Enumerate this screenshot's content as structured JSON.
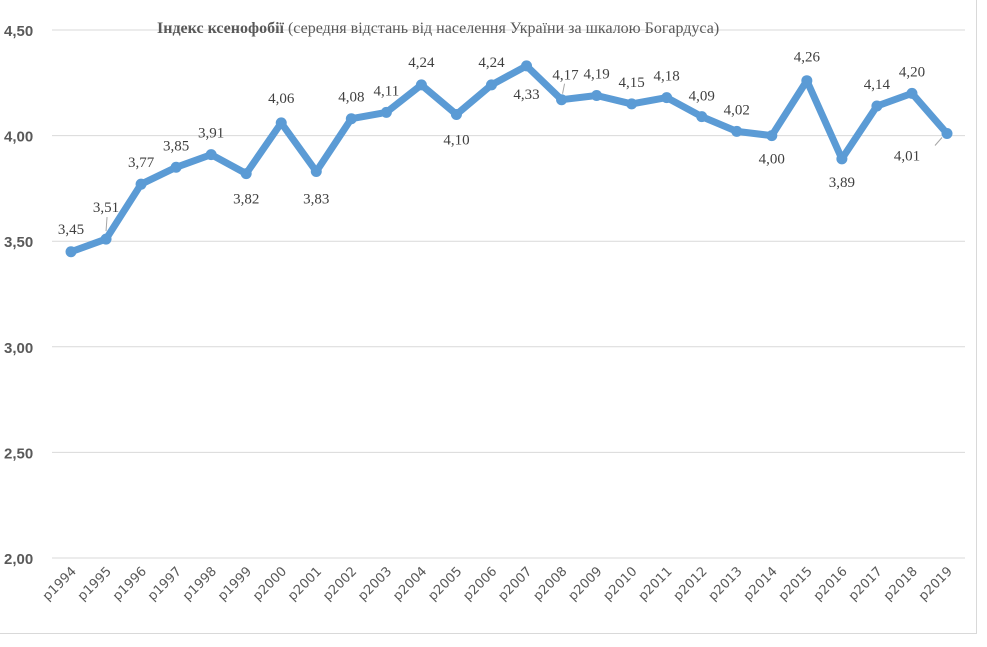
{
  "chart_data": {
    "type": "line",
    "title_bold": "Індекс ксенофобії",
    "title_rest": " (середня відстань від  населення України за шкалою Богардуса)",
    "categories": [
      "р1994",
      "р1995",
      "р1996",
      "р1997",
      "р1998",
      "р1999",
      "р2000",
      "р2001",
      "р2002",
      "р2003",
      "р2004",
      "р2005",
      "р2006",
      "р2007",
      "р2008",
      "р2009",
      "р2010",
      "р2011",
      "р2012",
      "р2013",
      "р2014",
      "р2015",
      "р2016",
      "р2017",
      "р2018",
      "р2019"
    ],
    "values": [
      3.45,
      3.51,
      3.77,
      3.85,
      3.91,
      3.82,
      4.06,
      3.83,
      4.08,
      4.11,
      4.24,
      4.1,
      4.24,
      4.33,
      4.17,
      4.19,
      4.15,
      4.18,
      4.09,
      4.02,
      4.0,
      4.26,
      3.89,
      4.14,
      4.2,
      4.01
    ],
    "data_labels": [
      "3,45",
      "3,51",
      "3,77",
      "3,85",
      "3,91",
      "3,82",
      "4,06",
      "3,83",
      "4,08",
      "4,11",
      "4,24",
      "4,10",
      "4,24",
      "4,33",
      "4,17",
      "4,19",
      "4,15",
      "4,18",
      "4,09",
      "4,02",
      "4,00",
      "4,26",
      "3,89",
      "4,14",
      "4,20",
      "4,01"
    ],
    "yticks": [
      "2,00",
      "2,50",
      "3,00",
      "3,50",
      "4,00",
      "4,50"
    ],
    "ylim": [
      2.0,
      4.5
    ],
    "grid": true,
    "legend": "none",
    "line_color": "#5B9BD5",
    "grid_color": "#d9d9d9"
  }
}
